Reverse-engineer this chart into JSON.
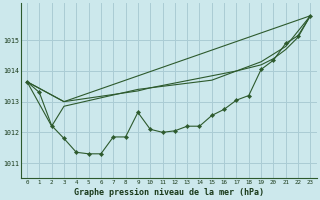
{
  "title": "Graphe pression niveau de la mer (hPa)",
  "bg_color": "#cce8ec",
  "grid_color": "#aaccd4",
  "line_color": "#2d5a2d",
  "x_ticks": [
    0,
    1,
    2,
    3,
    4,
    5,
    6,
    7,
    8,
    9,
    10,
    11,
    12,
    13,
    14,
    15,
    16,
    17,
    18,
    19,
    20,
    21,
    22,
    23
  ],
  "xlim": [
    -0.5,
    23.5
  ],
  "ylim": [
    1010.5,
    1016.2
  ],
  "yticks": [
    1011,
    1012,
    1013,
    1014,
    1015
  ],
  "series1": [
    1013.65,
    1013.3,
    1012.22,
    1011.8,
    1011.35,
    1011.3,
    1011.3,
    1011.85,
    1011.85,
    1012.65,
    1012.1,
    1012.0,
    1012.05,
    1012.2,
    1012.2,
    1012.55,
    1012.75,
    1013.05,
    1013.2,
    1014.05,
    1014.35,
    1014.9,
    1015.15,
    1015.8
  ],
  "series2_x": [
    0,
    2,
    3,
    9,
    10,
    15,
    17,
    18,
    19,
    20,
    21,
    22,
    23
  ],
  "series2_y": [
    1013.65,
    1012.2,
    1012.85,
    1013.4,
    1013.45,
    1013.7,
    1014.0,
    1014.1,
    1014.2,
    1014.4,
    1014.7,
    1015.1,
    1015.8
  ],
  "series3_x": [
    0,
    3,
    9,
    10,
    17,
    19,
    21,
    23
  ],
  "series3_y": [
    1013.65,
    1013.0,
    1013.35,
    1013.45,
    1014.0,
    1014.3,
    1014.8,
    1015.8
  ],
  "series4_x": [
    0,
    3,
    23
  ],
  "series4_y": [
    1013.65,
    1013.0,
    1015.8
  ]
}
